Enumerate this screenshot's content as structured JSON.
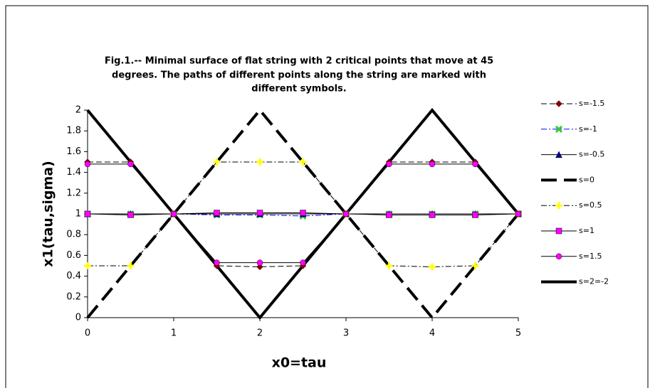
{
  "chart_data": {
    "type": "line",
    "title": [
      "Fig.1.-- Minimal surface of flat string with 2 critical points that move at 45",
      "degrees.  The paths of different points along the string are marked with",
      "different symbols."
    ],
    "x_label": "x0=tau",
    "y_label": "x1(tau,sigma)",
    "x": [
      0,
      0.5,
      1,
      1.5,
      2,
      2.5,
      3,
      3.5,
      4,
      4.5,
      5
    ],
    "xlim": [
      0,
      5
    ],
    "xticks": [
      0,
      1,
      2,
      3,
      4,
      5
    ],
    "ylim": [
      0,
      2
    ],
    "yticks": [
      0,
      0.2,
      0.4,
      0.6,
      0.8,
      1,
      1.2,
      1.4,
      1.6,
      1.8,
      2
    ],
    "legend": "right",
    "series": [
      {
        "name": "s=-1.5",
        "color": "#000000",
        "marker": "diamond",
        "marker_color": "#800000",
        "dash": "dashed",
        "width": 1,
        "values": [
          1.5,
          1.5,
          1,
          0.5,
          0.49,
          0.5,
          1,
          1.5,
          1.5,
          1.5,
          1
        ]
      },
      {
        "name": "s=-1",
        "color": "#0000ff",
        "marker": "x",
        "marker_color": "#33cc33",
        "dash": "dashdot",
        "width": 1,
        "values": [
          1,
          1,
          1,
          0.99,
          0.99,
          0.98,
          1,
          1,
          1,
          1,
          1
        ]
      },
      {
        "name": "s=-0.5",
        "color": "#000000",
        "marker": "triangle",
        "marker_color": "#000080",
        "dash": "solid",
        "width": 1,
        "values": [
          1,
          1,
          1,
          1,
          1,
          1,
          1,
          1,
          1,
          1,
          1
        ]
      },
      {
        "name": "s=0",
        "color": "#000000",
        "marker": "none",
        "marker_color": "#000000",
        "dash": "longdash",
        "width": 4,
        "values": [
          0,
          0.5,
          1,
          1.5,
          2,
          1.5,
          1,
          0.5,
          0,
          0.5,
          1
        ]
      },
      {
        "name": "s=0.5",
        "color": "#000000",
        "marker": "plus",
        "marker_color": "#ffff00",
        "dash": "dashdot",
        "width": 1,
        "values": [
          0.5,
          0.5,
          1,
          1.5,
          1.5,
          1.5,
          1,
          0.5,
          0.49,
          0.5,
          1
        ]
      },
      {
        "name": "s=1",
        "color": "#000000",
        "marker": "square",
        "marker_color": "#ff00ff",
        "dash": "solid",
        "width": 1,
        "values": [
          1,
          0.99,
          1,
          1.01,
          1.01,
          1.01,
          1,
          0.99,
          0.99,
          0.99,
          1
        ]
      },
      {
        "name": "s=1.5",
        "color": "#000000",
        "marker": "circle",
        "marker_color": "#ff00ff",
        "dash": "solid",
        "width": 1,
        "values": [
          1.48,
          1.48,
          1,
          0.53,
          0.53,
          0.53,
          1,
          1.48,
          1.48,
          1.48,
          1
        ]
      },
      {
        "name": "s=2=-2",
        "color": "#000000",
        "marker": "none",
        "marker_color": "#000000",
        "dash": "solid",
        "width": 4,
        "values": [
          2,
          1.5,
          1,
          0.5,
          0,
          0.5,
          1,
          1.5,
          2,
          1.5,
          1
        ]
      }
    ]
  }
}
